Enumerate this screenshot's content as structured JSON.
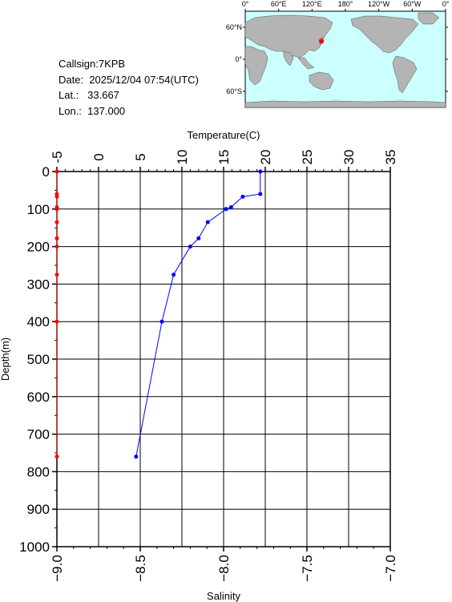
{
  "station": {
    "callsign_label": "Callsign:",
    "callsign": "7KPB",
    "date_label": "Date:",
    "date": "2025/12/04 07:54(UTC)",
    "lat_label": "Lat.:",
    "lat": "33.667",
    "lon_label": "Lon.:",
    "lon": "137.000"
  },
  "map": {
    "top_ticks": [
      "0°",
      "60°E",
      "120°E",
      "180°",
      "120°W",
      "60°W",
      "0°"
    ],
    "lat_ticks": [
      "60°N",
      "0°",
      "60°S"
    ],
    "marker": {
      "lat": 33.667,
      "lon": 137.0
    },
    "ocean_color": "#ccffff",
    "land_color": "#b4b4b4",
    "marker_color": "#ff0000"
  },
  "chart_data": {
    "type": "line",
    "title": "",
    "x_top_label": "Temperature(C)",
    "x_top_ticks": [
      "-5",
      "0",
      "5",
      "10",
      "15",
      "20",
      "25",
      "30",
      "35"
    ],
    "x_top_range": [
      -5,
      35
    ],
    "x_bottom_label": "Salinity",
    "x_bottom_ticks": [
      "-9.0",
      "-8.5",
      "-8.0",
      "-7.5",
      "-7.0"
    ],
    "x_bottom_range": [
      -9.0,
      -7.0
    ],
    "y_label": "Depth(m)",
    "y_ticks": [
      "0",
      "100",
      "200",
      "300",
      "400",
      "500",
      "600",
      "700",
      "800",
      "900",
      "1000"
    ],
    "y_range": [
      0,
      1000
    ],
    "y_inverted": true,
    "grid": true,
    "series": [
      {
        "name": "Temperature(C)",
        "axis": "top",
        "color": "#0000ff",
        "points": [
          {
            "x": 19.4,
            "y": 0
          },
          {
            "x": 19.4,
            "y": 60
          },
          {
            "x": 17.3,
            "y": 67
          },
          {
            "x": 15.9,
            "y": 95
          },
          {
            "x": 15.3,
            "y": 100
          },
          {
            "x": 13.1,
            "y": 135
          },
          {
            "x": 12.0,
            "y": 178
          },
          {
            "x": 11.0,
            "y": 200
          },
          {
            "x": 9.0,
            "y": 275
          },
          {
            "x": 7.6,
            "y": 400
          },
          {
            "x": 4.5,
            "y": 760
          }
        ]
      },
      {
        "name": "Salinity",
        "axis": "bottom",
        "color": "#ff0000",
        "points": [
          {
            "x": -9.0,
            "y": 0
          },
          {
            "x": -9.0,
            "y": 60
          },
          {
            "x": -9.0,
            "y": 67
          },
          {
            "x": -9.0,
            "y": 95
          },
          {
            "x": -9.0,
            "y": 100
          },
          {
            "x": -9.0,
            "y": 135
          },
          {
            "x": -9.0,
            "y": 178
          },
          {
            "x": -9.0,
            "y": 200
          },
          {
            "x": -9.0,
            "y": 275
          },
          {
            "x": -9.0,
            "y": 400
          },
          {
            "x": -9.0,
            "y": 760
          }
        ]
      }
    ]
  }
}
